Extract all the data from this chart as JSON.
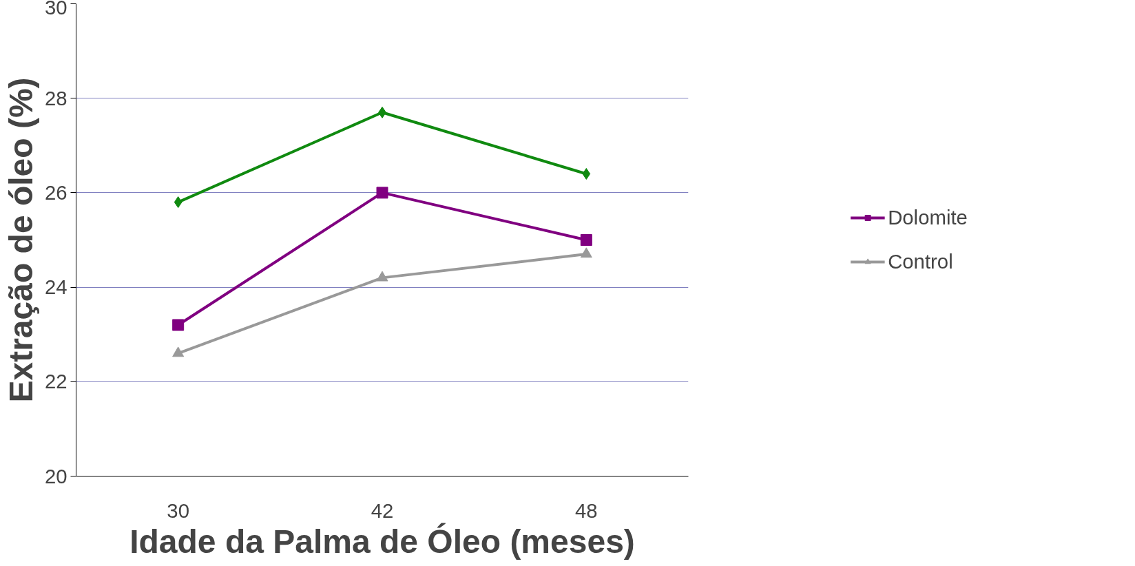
{
  "chart_data": {
    "type": "line",
    "xlabel": "Idade da Palma de Óleo (meses)",
    "ylabel": "Extração de óleo (%)",
    "categories": [
      "30",
      "42",
      "48"
    ],
    "series": [
      {
        "color": "#108a10",
        "marker": "diamond",
        "values": [
          25.8,
          27.7,
          26.4
        ]
      },
      {
        "name": "Dolomite",
        "color": "#800080",
        "marker": "square",
        "values": [
          23.2,
          26.0,
          25.0
        ]
      },
      {
        "name": "Control",
        "color": "#999999",
        "marker": "triangle",
        "values": [
          22.6,
          24.2,
          24.7
        ]
      }
    ],
    "ylim": [
      20,
      30
    ],
    "yticks": [
      20,
      22,
      24,
      26,
      28,
      30
    ],
    "grid": "y",
    "legend": "right"
  }
}
